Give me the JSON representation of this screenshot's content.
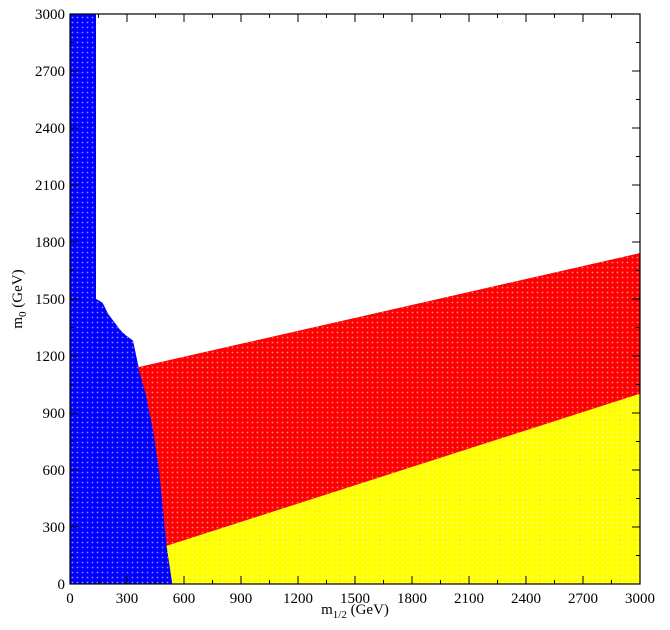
{
  "chart_data": {
    "type": "area",
    "title": "",
    "xlabel": {
      "main": "m",
      "sub": "1/2",
      "unit": " (GeV)"
    },
    "ylabel": {
      "main": "m",
      "sub": "0",
      "unit": " (GeV)"
    },
    "xlim": [
      0,
      3000
    ],
    "ylim": [
      0,
      3000
    ],
    "xticks": [
      0,
      300,
      600,
      900,
      1200,
      1500,
      1800,
      2100,
      2400,
      2700,
      3000
    ],
    "yticks": [
      0,
      300,
      600,
      900,
      1200,
      1500,
      1800,
      2100,
      2400,
      2700,
      3000
    ],
    "grid": false,
    "legend": "none",
    "regions": [
      {
        "color": "#0000ff",
        "points": [
          [
            0,
            3000
          ],
          [
            135,
            3000
          ],
          [
            135,
            1500
          ],
          [
            170,
            1480
          ],
          [
            200,
            1420
          ],
          [
            230,
            1380
          ],
          [
            260,
            1340
          ],
          [
            290,
            1310
          ],
          [
            330,
            1280
          ],
          [
            360,
            1140
          ],
          [
            400,
            1000
          ],
          [
            440,
            800
          ],
          [
            470,
            600
          ],
          [
            490,
            400
          ],
          [
            510,
            200
          ],
          [
            540,
            0
          ],
          [
            0,
            0
          ]
        ]
      },
      {
        "color": "#ff0000",
        "points": [
          [
            360,
            1140
          ],
          [
            3000,
            1740
          ],
          [
            3000,
            1000
          ],
          [
            510,
            200
          ],
          [
            490,
            400
          ],
          [
            470,
            600
          ],
          [
            440,
            800
          ],
          [
            400,
            1000
          ]
        ]
      },
      {
        "color": "#ffff00",
        "points": [
          [
            510,
            200
          ],
          [
            3000,
            1000
          ],
          [
            3000,
            0
          ],
          [
            540,
            0
          ]
        ]
      }
    ]
  }
}
